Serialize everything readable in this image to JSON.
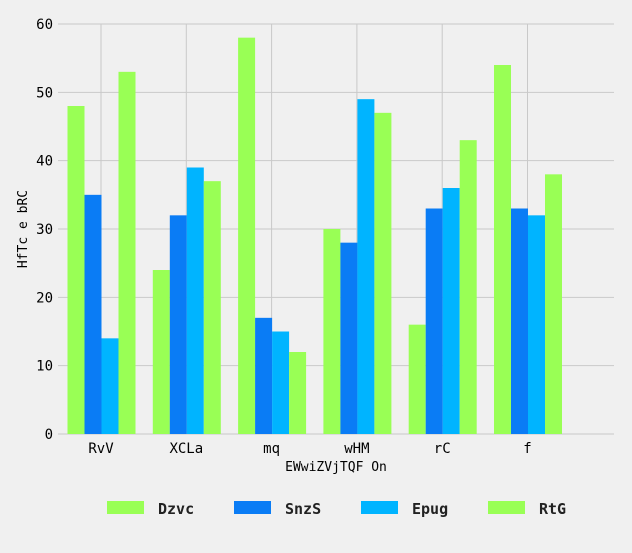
{
  "chart_data": {
    "type": "bar",
    "title": "",
    "xlabel": "EWwiZVjTQF On",
    "ylabel": "HfTc e bRC",
    "categories": [
      "RvV",
      "XCLa",
      "mq",
      "wHM",
      "rC",
      "f"
    ],
    "series": [
      {
        "name": "Dzvc",
        "color": "#99ff55",
        "values": [
          48,
          24,
          58,
          30,
          16,
          54
        ]
      },
      {
        "name": "SnzS",
        "color": "#0a7cf5",
        "values": [
          35,
          32,
          17,
          28,
          33,
          33
        ]
      },
      {
        "name": "Epug",
        "color": "#00b4ff",
        "values": [
          14,
          39,
          15,
          49,
          36,
          32
        ]
      },
      {
        "name": "RtG",
        "color": "#99ff55",
        "values": [
          53,
          37,
          12,
          47,
          43,
          38
        ]
      }
    ],
    "ylim": [
      0,
      60
    ],
    "yticks": [
      0,
      10,
      20,
      30,
      40,
      50,
      60
    ],
    "grid": true,
    "legend_position": "bottom"
  }
}
